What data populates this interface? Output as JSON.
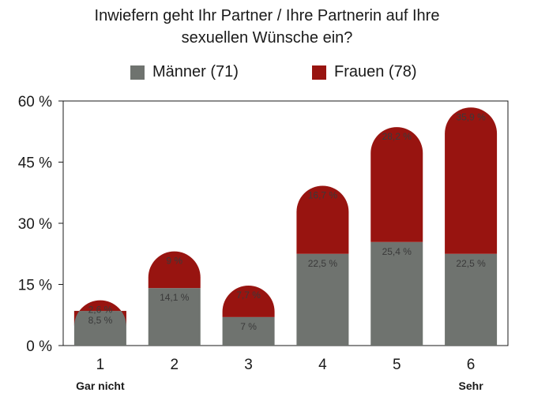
{
  "chart_data": {
    "type": "bar",
    "stacked": true,
    "title_lines": [
      "Inwiefern geht Ihr Partner / Ihre Partnerin auf Ihre",
      "sexuellen Wünsche ein?"
    ],
    "categories": [
      "1",
      "2",
      "3",
      "4",
      "5",
      "6"
    ],
    "category_notes": [
      "Gar nicht",
      "",
      "",
      "",
      "",
      "Sehr"
    ],
    "yticks": [
      "0 %",
      "15 %",
      "30 %",
      "45 %",
      "60 %"
    ],
    "ylim": [
      0,
      60
    ],
    "grid": false,
    "legend_position": "top",
    "series": [
      {
        "name": "Männer (71)",
        "color": "#6f736f",
        "values": [
          8.5,
          14.1,
          7,
          22.5,
          25.4,
          22.5
        ],
        "labels": [
          "8,5 %",
          "14,1 %",
          "7 %",
          "22,5 %",
          "25,4 %",
          "22,5 %"
        ]
      },
      {
        "name": "Frauen (78)",
        "color": "#981410",
        "values": [
          2.6,
          9,
          7.7,
          16.7,
          28.2,
          35.9
        ],
        "labels": [
          "2,6 %",
          "9 %",
          "7,7 %",
          "16,7 %",
          "28,2 %",
          "35,9 %"
        ]
      }
    ]
  }
}
